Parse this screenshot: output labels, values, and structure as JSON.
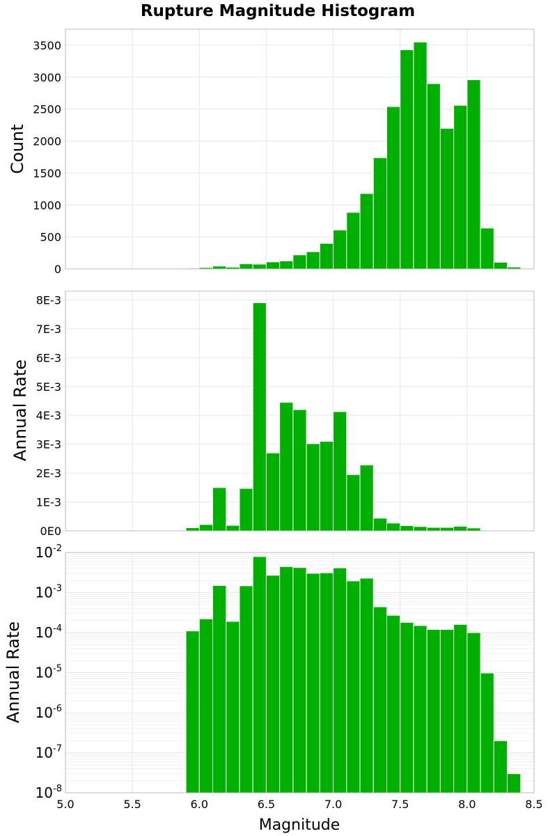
{
  "figure": {
    "title": "Rupture Magnitude Histogram",
    "xlabel": "Magnitude",
    "bar_color": "#00b000",
    "grid": true
  },
  "chart_data": [
    {
      "type": "bar",
      "ylabel": "Count",
      "x": [
        5.95,
        6.05,
        6.15,
        6.25,
        6.35,
        6.45,
        6.55,
        6.65,
        6.75,
        6.85,
        6.95,
        7.05,
        7.15,
        7.25,
        7.35,
        7.45,
        7.55,
        7.65,
        7.75,
        7.85,
        7.95,
        8.05,
        8.15,
        8.25,
        8.35
      ],
      "values": [
        12,
        22,
        45,
        28,
        80,
        75,
        110,
        125,
        220,
        270,
        400,
        610,
        885,
        1180,
        1740,
        2540,
        3430,
        3550,
        2900,
        2200,
        2560,
        2960,
        640,
        105,
        30
      ],
      "xlim": [
        5.0,
        8.5
      ],
      "ylim": [
        0,
        3750
      ],
      "yticks": [
        0,
        500,
        1000,
        1500,
        2000,
        2500,
        3000,
        3500
      ],
      "ytick_labels": [
        "0",
        "500",
        "1000",
        "1500",
        "2000",
        "2500",
        "3000",
        "3500"
      ],
      "scale": "linear"
    },
    {
      "type": "bar",
      "ylabel": "Annual Rate",
      "x": [
        5.95,
        6.05,
        6.15,
        6.25,
        6.35,
        6.45,
        6.55,
        6.65,
        6.75,
        6.85,
        6.95,
        7.05,
        7.15,
        7.25,
        7.35,
        7.45,
        7.55,
        7.65,
        7.75,
        7.85,
        7.95,
        8.05,
        8.15,
        8.25,
        8.35
      ],
      "values": [
        0.00011,
        0.00022,
        0.0015,
        0.00019,
        0.00147,
        0.0079,
        0.0027,
        0.00445,
        0.0042,
        0.00302,
        0.0031,
        0.00413,
        0.00195,
        0.00228,
        0.00044,
        0.00027,
        0.00018,
        0.00015,
        0.00012,
        0.00012,
        0.00016,
        0.0001,
        9.8e-06,
        2e-07,
        3e-08
      ],
      "xlim": [
        5.0,
        8.5
      ],
      "ylim": [
        0,
        0.0083
      ],
      "yticks": [
        0,
        0.001,
        0.002,
        0.003,
        0.004,
        0.005,
        0.006,
        0.007,
        0.008
      ],
      "ytick_labels": [
        "0E0",
        "1E-3",
        "2E-3",
        "3E-3",
        "4E-3",
        "5E-3",
        "6E-3",
        "7E-3",
        "8E-3"
      ],
      "scale": "linear"
    },
    {
      "type": "bar",
      "ylabel": "Annual Rate",
      "x": [
        5.95,
        6.05,
        6.15,
        6.25,
        6.35,
        6.45,
        6.55,
        6.65,
        6.75,
        6.85,
        6.95,
        7.05,
        7.15,
        7.25,
        7.35,
        7.45,
        7.55,
        7.65,
        7.75,
        7.85,
        7.95,
        8.05,
        8.15,
        8.25,
        8.35
      ],
      "values": [
        0.00011,
        0.00022,
        0.0015,
        0.00019,
        0.00147,
        0.0079,
        0.0027,
        0.00445,
        0.0042,
        0.00302,
        0.0031,
        0.00413,
        0.00195,
        0.00228,
        0.00044,
        0.00027,
        0.00018,
        0.00015,
        0.00012,
        0.00012,
        0.00016,
        0.0001,
        9.8e-06,
        2e-07,
        3e-08
      ],
      "xlim": [
        5.0,
        8.5
      ],
      "ylim": [
        1e-08,
        0.01
      ],
      "yticks": [
        1e-08,
        1e-07,
        1e-06,
        1e-05,
        0.0001,
        0.001,
        0.01
      ],
      "ytick_base": [
        "10",
        "10",
        "10",
        "10",
        "10",
        "10",
        "10"
      ],
      "ytick_exp": [
        "-8",
        "-7",
        "-6",
        "-5",
        "-4",
        "-3",
        "-2"
      ],
      "scale": "log"
    }
  ],
  "xticks": [
    5.0,
    5.5,
    6.0,
    6.5,
    7.0,
    7.5,
    8.0,
    8.5
  ],
  "xtick_labels": [
    "5.0",
    "5.5",
    "6.0",
    "6.5",
    "7.0",
    "7.5",
    "8.0",
    "8.5"
  ]
}
